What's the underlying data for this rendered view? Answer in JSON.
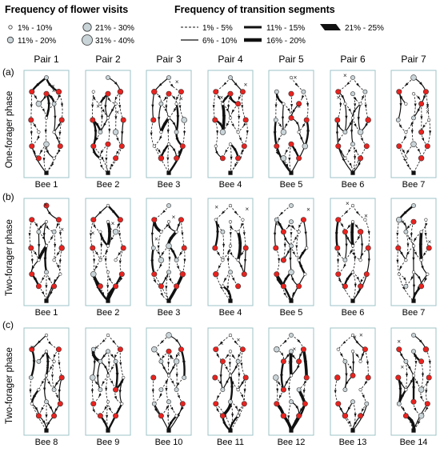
{
  "legend": {
    "flower_title": "Frequency of flower visits",
    "transition_title": "Frequency of transition segments",
    "flower_items": [
      {
        "label": "1% - 10%"
      },
      {
        "label": "11% - 20%"
      },
      {
        "label": "21% - 30%"
      },
      {
        "label": "31% - 40%"
      }
    ],
    "transition_items": [
      {
        "label": "1% - 5%",
        "style": "dashed"
      },
      {
        "label": "6% - 10%",
        "style": "solid-thin"
      },
      {
        "label": "11% - 15%",
        "style": "solid-medium"
      },
      {
        "label": "16% - 20%",
        "style": "solid-thick"
      },
      {
        "label": "21% - 25%",
        "style": "solid-heavy"
      }
    ]
  },
  "pairs": [
    "Pair 1",
    "Pair 2",
    "Pair 3",
    "Pair 4",
    "Pair 5",
    "Pair 6",
    "Pair 7"
  ],
  "rows": [
    {
      "letter": "(a)",
      "phase": "One-forager phase",
      "bees": [
        "Bee 1",
        "Bee 2",
        "Bee 3",
        "Bee 4",
        "Bee 5",
        "Bee 6",
        "Bee 7"
      ]
    },
    {
      "letter": "(b)",
      "phase": "Two-forager phase",
      "bees": [
        "Bee 1",
        "Bee 2",
        "Bee 3",
        "Bee 4",
        "Bee 5",
        "Bee 6",
        "Bee 7"
      ]
    },
    {
      "letter": "(c)",
      "phase": "Two-forager phase",
      "bees": [
        "Bee 8",
        "Bee 9",
        "Bee 10",
        "Bee 11",
        "Bee 12",
        "Bee 13",
        "Bee 14"
      ]
    }
  ],
  "colors": {
    "panel_border": "#9ec3c7",
    "rewarding_flower": "#e8231f",
    "visited_flower": "#c9d4d8",
    "edge": "#111111"
  }
}
